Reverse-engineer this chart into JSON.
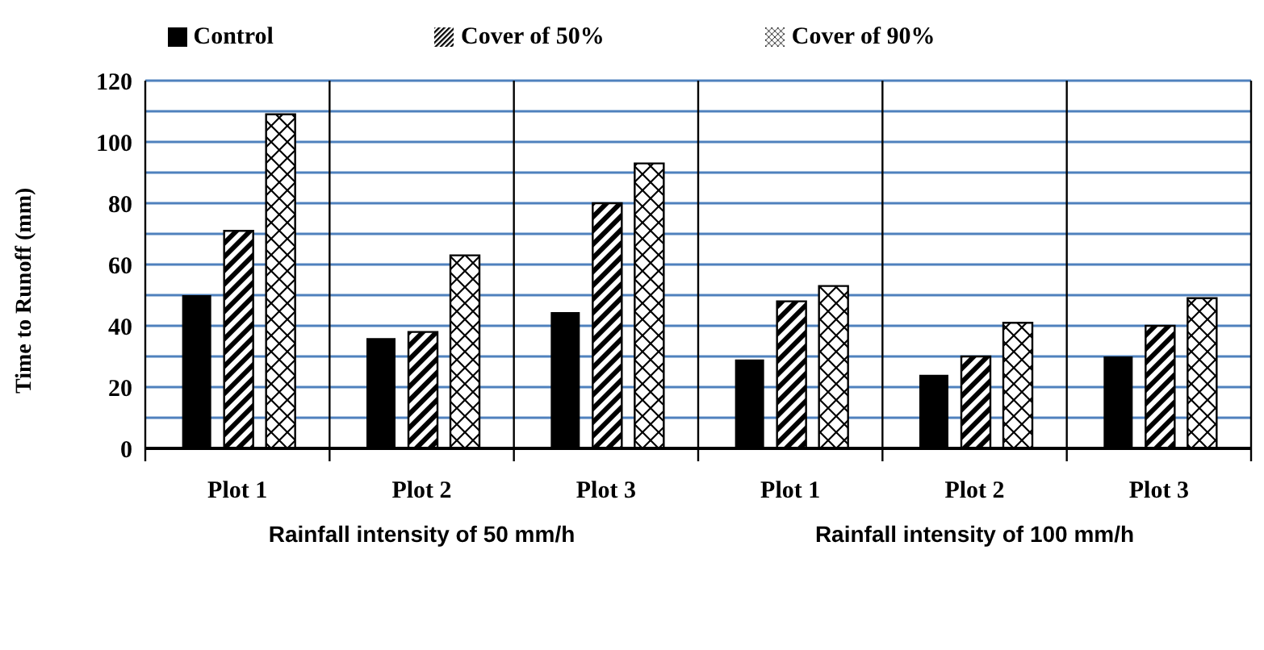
{
  "chart_data": {
    "type": "bar",
    "ylabel": "Time to Runoff (mm)",
    "categories": [
      "Plot 1",
      "Plot 2",
      "Plot 3",
      "Plot 1",
      "Plot 2",
      "Plot 3"
    ],
    "series": [
      {
        "name": "Control",
        "color": "#000000",
        "values": [
          50,
          36,
          44.5,
          29,
          24,
          30
        ]
      },
      {
        "name": "Cover of 50%",
        "color": "#000000",
        "values": [
          71,
          38,
          80,
          48,
          30,
          40
        ]
      },
      {
        "name": "Cover of 90%",
        "color": "#000000",
        "values": [
          109,
          63,
          93,
          53,
          41,
          49
        ]
      }
    ],
    "ylim": [
      0,
      120
    ],
    "yticks": [
      0,
      {
        "value": 10,
        "label": null
      },
      20,
      {
        "value": 30,
        "label": null
      },
      40,
      {
        "value": 50,
        "label": null
      },
      60,
      {
        "value": 70,
        "label": null
      },
      80,
      {
        "value": 90,
        "label": null
      },
      100,
      {
        "value": 110,
        "label": null
      },
      120
    ],
    "grid": true,
    "legend": "top",
    "annotations": [
      "Rainfall intensity of 50 mm/h",
      "Rainfall intensity of 100 mm/h"
    ]
  }
}
